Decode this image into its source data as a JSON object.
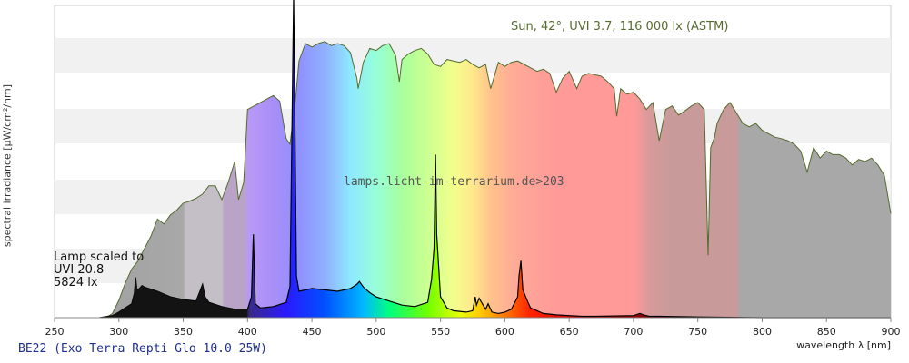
{
  "chart_data": {
    "type": "area",
    "ylabel": "spectral irradiance [µW/cm²/nm]",
    "xlabel": "wavelength λ [nm]",
    "xlim": [
      250,
      900
    ],
    "x_ticks": [
      250,
      300,
      350,
      400,
      450,
      500,
      550,
      600,
      650,
      700,
      750,
      800,
      850,
      900
    ],
    "ylim": [
      0,
      450
    ],
    "grid": "horizontal bands",
    "annotations": {
      "sun": "Sun, 42°, UVI 3.7, 116 000 lx (ASTM)",
      "lamp_lines": [
        "Lamp scaled to",
        "UVI 20.8",
        "5824 lx"
      ],
      "watermark": "lamps.licht-im-terrarium.de>203"
    },
    "caption": "BE22 (Exo Terra Repti Glo 10.0 25W)",
    "series": [
      {
        "key": "sun",
        "color": "#556b2f",
        "x": [
          290,
          295,
          300,
          305,
          310,
          315,
          320,
          325,
          330,
          335,
          340,
          345,
          350,
          355,
          360,
          365,
          370,
          375,
          380,
          385,
          390,
          393,
          397,
          400,
          405,
          410,
          415,
          420,
          425,
          430,
          433,
          437,
          440,
          445,
          450,
          455,
          460,
          465,
          470,
          475,
          480,
          485,
          486,
          490,
          495,
          500,
          505,
          510,
          515,
          518,
          520,
          525,
          530,
          535,
          540,
          545,
          550,
          555,
          560,
          565,
          570,
          575,
          580,
          585,
          589,
          595,
          600,
          605,
          610,
          615,
          620,
          625,
          630,
          635,
          640,
          645,
          650,
          656,
          660,
          665,
          670,
          675,
          680,
          685,
          687,
          690,
          695,
          700,
          705,
          710,
          715,
          720,
          725,
          730,
          735,
          740,
          745,
          750,
          755,
          758,
          760,
          763,
          765,
          770,
          775,
          780,
          785,
          790,
          795,
          800,
          805,
          810,
          815,
          820,
          825,
          830,
          835,
          840,
          845,
          850,
          855,
          860,
          865,
          870,
          875,
          880,
          885,
          890,
          895,
          900
        ],
        "y": [
          0,
          6,
          25,
          50,
          70,
          82,
          100,
          118,
          142,
          135,
          148,
          155,
          165,
          168,
          172,
          178,
          190,
          190,
          170,
          195,
          225,
          170,
          195,
          300,
          305,
          310,
          315,
          320,
          312,
          258,
          250,
          310,
          370,
          395,
          390,
          395,
          398,
          392,
          395,
          392,
          382,
          345,
          330,
          368,
          388,
          385,
          392,
          395,
          378,
          340,
          372,
          380,
          385,
          388,
          380,
          365,
          362,
          372,
          370,
          368,
          372,
          365,
          360,
          365,
          330,
          368,
          362,
          368,
          370,
          365,
          360,
          355,
          358,
          352,
          325,
          345,
          355,
          330,
          348,
          352,
          350,
          348,
          340,
          330,
          290,
          330,
          322,
          325,
          315,
          300,
          310,
          255,
          300,
          305,
          292,
          298,
          305,
          310,
          300,
          90,
          245,
          260,
          280,
          300,
          310,
          295,
          280,
          275,
          280,
          270,
          265,
          260,
          258,
          255,
          250,
          240,
          210,
          245,
          230,
          240,
          235,
          235,
          230,
          220,
          228,
          225,
          230,
          220,
          205,
          150
        ]
      },
      {
        "key": "lamp",
        "color": "#000000",
        "x": [
          285,
          295,
          300,
          305,
          310,
          312,
          313,
          314,
          316,
          318,
          320,
          330,
          340,
          350,
          360,
          363,
          365,
          367,
          370,
          380,
          390,
          400,
          403,
          404.5,
          406,
          410,
          420,
          430,
          433,
          435.8,
          438,
          440,
          450,
          460,
          470,
          480,
          485,
          487,
          490,
          495,
          500,
          510,
          520,
          530,
          540,
          543,
          545,
          546.1,
          547,
          550,
          555,
          560,
          570,
          575,
          577,
          578,
          580,
          585,
          587,
          590,
          595,
          600,
          605,
          610,
          611,
          612.5,
          614,
          618,
          620,
          625,
          630,
          640,
          650,
          660,
          670,
          700,
          705,
          708,
          712,
          720,
          750,
          800,
          900
        ],
        "y": [
          0,
          3,
          8,
          14,
          20,
          35,
          58,
          40,
          42,
          46,
          44,
          38,
          30,
          26,
          24,
          38,
          48,
          30,
          22,
          16,
          12,
          12,
          30,
          120,
          20,
          14,
          16,
          22,
          45,
          466,
          60,
          38,
          42,
          40,
          38,
          42,
          48,
          52,
          44,
          36,
          30,
          24,
          18,
          16,
          22,
          55,
          100,
          235,
          120,
          30,
          14,
          10,
          8,
          10,
          30,
          18,
          28,
          12,
          20,
          8,
          6,
          8,
          12,
          30,
          60,
          82,
          40,
          22,
          14,
          10,
          6,
          4,
          3,
          2,
          2,
          3,
          6,
          4,
          2,
          2,
          1,
          0,
          0
        ]
      }
    ]
  },
  "colors": {
    "sun_line": "#556b2f",
    "gray_fill": "#9e9e9e",
    "band_fill": "#f1f1f1",
    "lamp_dark": "#111111",
    "caption": "#1f2f8f"
  }
}
